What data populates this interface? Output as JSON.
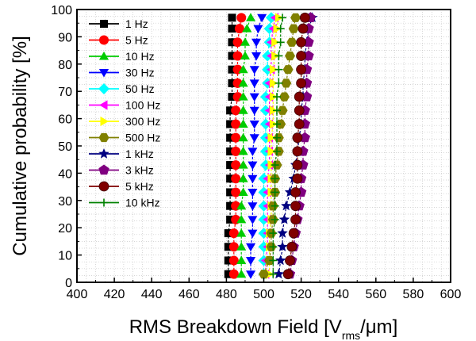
{
  "chart_data": {
    "type": "scatter",
    "title": "",
    "xlabel_main": "RMS Breakdown Field [V",
    "xlabel_sub": "rms",
    "xlabel_end": "/μm]",
    "ylabel": "Cumulative probability [%]",
    "xlim": [
      400,
      600
    ],
    "ylim": [
      0,
      100
    ],
    "xticks": [
      "400",
      "420",
      "440",
      "460",
      "480",
      "500",
      "520",
      "540",
      "560",
      "580",
      "600"
    ],
    "yticks": [
      "0",
      "10",
      "20",
      "30",
      "40",
      "50",
      "60",
      "70",
      "80",
      "90",
      "100"
    ],
    "grid": true,
    "legend_position": "top-left",
    "y": [
      3,
      8,
      13,
      18,
      23,
      28,
      33,
      38,
      43,
      48,
      53,
      58,
      63,
      68,
      73,
      78,
      83,
      88,
      93,
      97
    ],
    "series": [
      {
        "name": "1 Hz",
        "color": "#000000",
        "marker": "square",
        "x": [
          481,
          481,
          481,
          481,
          482,
          482,
          482,
          482,
          482,
          482,
          482,
          482,
          482,
          483,
          483,
          483,
          483,
          483,
          483,
          483
        ]
      },
      {
        "name": "5 Hz",
        "color": "#ff0000",
        "marker": "circle",
        "x": [
          484,
          484,
          484,
          484,
          485,
          485,
          485,
          485,
          485,
          485,
          485,
          485,
          485,
          486,
          486,
          486,
          486,
          486,
          487,
          488
        ]
      },
      {
        "name": "10 Hz",
        "color": "#00cc00",
        "marker": "triangle-up",
        "x": [
          488,
          488,
          488,
          488,
          488,
          488,
          489,
          489,
          489,
          489,
          489,
          489,
          489,
          489,
          489,
          489,
          490,
          490,
          491,
          493
        ]
      },
      {
        "name": "30 Hz",
        "color": "#0000ff",
        "marker": "triangle-down",
        "x": [
          493,
          493,
          493,
          494,
          494,
          494,
          494,
          494,
          494,
          494,
          495,
          495,
          495,
          495,
          495,
          495,
          496,
          496,
          497,
          499
        ]
      },
      {
        "name": "50 Hz",
        "color": "#00ffff",
        "marker": "diamond",
        "x": [
          500,
          500,
          500,
          500,
          500,
          500,
          500,
          500,
          501,
          501,
          501,
          501,
          501,
          501,
          502,
          502,
          502,
          503,
          503,
          504
        ]
      },
      {
        "name": "100 Hz",
        "color": "#ff00ff",
        "marker": "triangle-left",
        "x": [
          501,
          501,
          502,
          502,
          502,
          502,
          502,
          502,
          503,
          503,
          503,
          503,
          503,
          503,
          503,
          504,
          504,
          504,
          505,
          506
        ]
      },
      {
        "name": "300 Hz",
        "color": "#ffff00",
        "marker": "triangle-right",
        "x": [
          503,
          503,
          503,
          503,
          504,
          504,
          504,
          504,
          504,
          504,
          504,
          505,
          505,
          505,
          505,
          505,
          506,
          506,
          507,
          508
        ]
      },
      {
        "name": "500 Hz",
        "color": "#808000",
        "marker": "hexagon",
        "x": [
          500,
          503,
          504,
          504,
          505,
          505,
          506,
          506,
          507,
          508,
          508,
          509,
          510,
          511,
          512,
          513,
          514,
          515,
          516,
          517
        ]
      },
      {
        "name": "1 kHz",
        "color": "#000080",
        "marker": "star",
        "x": [
          508,
          509,
          510,
          510,
          511,
          512,
          514,
          516,
          517,
          518,
          519,
          520,
          520,
          521,
          521,
          522,
          522,
          523,
          524,
          526
        ]
      },
      {
        "name": "3 kHz",
        "color": "#800080",
        "marker": "pentagon",
        "x": [
          514,
          515,
          516,
          517,
          518,
          519,
          520,
          520,
          521,
          521,
          522,
          522,
          522,
          523,
          523,
          523,
          524,
          524,
          524,
          525
        ]
      },
      {
        "name": "5 kHz",
        "color": "#800000",
        "marker": "sphere",
        "x": [
          513,
          514,
          515,
          516,
          517,
          517,
          517,
          518,
          518,
          518,
          518,
          519,
          519,
          519,
          520,
          520,
          520,
          520,
          521,
          522
        ]
      },
      {
        "name": "10 kHz",
        "color": "#008000",
        "marker": "plus",
        "x": [
          505,
          505,
          505,
          505,
          506,
          506,
          506,
          506,
          506,
          507,
          507,
          507,
          507,
          507,
          508,
          508,
          508,
          509,
          509,
          510
        ]
      }
    ]
  }
}
